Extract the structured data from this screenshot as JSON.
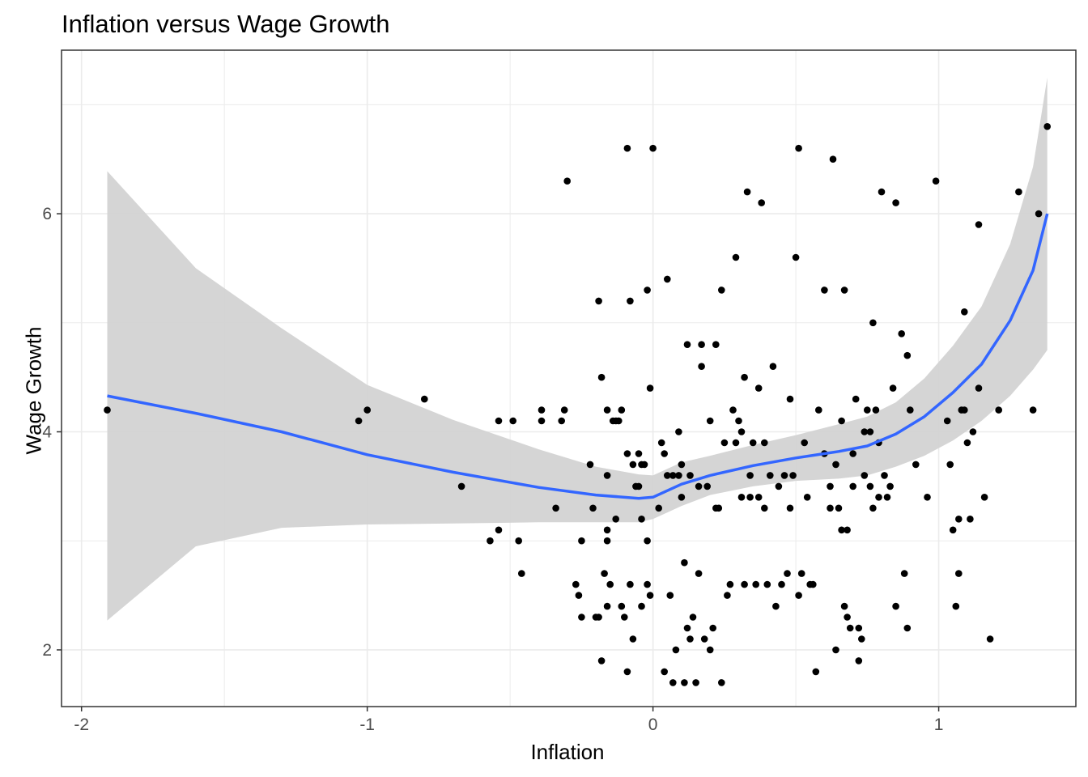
{
  "chart_data": {
    "type": "scatter",
    "title": "Inflation versus Wage Growth",
    "xlabel": "Inflation",
    "ylabel": "Wage Growth",
    "xlim": [
      -2.07,
      1.48
    ],
    "ylim": [
      1.48,
      7.5
    ],
    "x_ticks": [
      -2,
      -1,
      0,
      1
    ],
    "x_tick_labels": [
      "-2",
      "-1",
      "0",
      "1"
    ],
    "y_ticks": [
      2,
      4,
      6
    ],
    "y_tick_labels": [
      "2",
      "4",
      "6"
    ],
    "grid": true,
    "colors": {
      "points": "#000000",
      "smooth_line": "#3366FF",
      "ribbon": "#D3D3D3",
      "grid": "#EBEBEB",
      "panel_border": "#333333"
    },
    "points": [
      [
        -1.91,
        4.2
      ],
      [
        -1.03,
        4.1
      ],
      [
        -1.0,
        4.2
      ],
      [
        -0.8,
        4.3
      ],
      [
        -0.67,
        3.5
      ],
      [
        -0.57,
        3.0
      ],
      [
        -0.54,
        3.1
      ],
      [
        -0.54,
        4.1
      ],
      [
        -0.49,
        4.1
      ],
      [
        -0.47,
        3.0
      ],
      [
        -0.46,
        2.7
      ],
      [
        -0.39,
        4.1
      ],
      [
        -0.39,
        4.2
      ],
      [
        -0.34,
        3.3
      ],
      [
        -0.32,
        4.1
      ],
      [
        -0.31,
        4.2
      ],
      [
        -0.3,
        6.3
      ],
      [
        -0.27,
        2.6
      ],
      [
        -0.26,
        2.5
      ],
      [
        -0.25,
        2.3
      ],
      [
        -0.25,
        3.0
      ],
      [
        -0.22,
        3.7
      ],
      [
        -0.21,
        3.3
      ],
      [
        -0.2,
        2.3
      ],
      [
        -0.19,
        2.3
      ],
      [
        -0.19,
        5.2
      ],
      [
        -0.18,
        4.5
      ],
      [
        -0.18,
        1.9
      ],
      [
        -0.17,
        2.7
      ],
      [
        -0.16,
        3.1
      ],
      [
        -0.16,
        2.4
      ],
      [
        -0.16,
        3.6
      ],
      [
        -0.16,
        4.2
      ],
      [
        -0.16,
        3.0
      ],
      [
        -0.15,
        2.6
      ],
      [
        -0.14,
        4.1
      ],
      [
        -0.13,
        4.1
      ],
      [
        -0.13,
        3.2
      ],
      [
        -0.12,
        4.1
      ],
      [
        -0.11,
        2.4
      ],
      [
        -0.11,
        4.2
      ],
      [
        -0.1,
        2.3
      ],
      [
        -0.09,
        6.6
      ],
      [
        -0.09,
        3.8
      ],
      [
        -0.09,
        1.8
      ],
      [
        -0.08,
        2.6
      ],
      [
        -0.08,
        5.2
      ],
      [
        -0.07,
        2.1
      ],
      [
        -0.07,
        3.7
      ],
      [
        -0.06,
        3.5
      ],
      [
        -0.05,
        3.8
      ],
      [
        -0.05,
        3.5
      ],
      [
        -0.04,
        2.4
      ],
      [
        -0.04,
        3.2
      ],
      [
        -0.04,
        3.7
      ],
      [
        -0.03,
        3.7
      ],
      [
        -0.02,
        3.0
      ],
      [
        -0.02,
        2.6
      ],
      [
        -0.02,
        5.3
      ],
      [
        -0.01,
        4.4
      ],
      [
        -0.01,
        2.5
      ],
      [
        0.0,
        6.6
      ],
      [
        0.02,
        3.3
      ],
      [
        0.03,
        3.9
      ],
      [
        0.04,
        3.8
      ],
      [
        0.04,
        1.8
      ],
      [
        0.05,
        3.6
      ],
      [
        0.05,
        5.4
      ],
      [
        0.06,
        2.5
      ],
      [
        0.07,
        3.6
      ],
      [
        0.07,
        1.7
      ],
      [
        0.08,
        2.0
      ],
      [
        0.09,
        4.0
      ],
      [
        0.09,
        3.6
      ],
      [
        0.1,
        3.4
      ],
      [
        0.1,
        3.7
      ],
      [
        0.11,
        2.8
      ],
      [
        0.11,
        1.7
      ],
      [
        0.12,
        2.2
      ],
      [
        0.12,
        4.8
      ],
      [
        0.13,
        3.6
      ],
      [
        0.13,
        2.1
      ],
      [
        0.14,
        2.3
      ],
      [
        0.15,
        1.7
      ],
      [
        0.16,
        2.7
      ],
      [
        0.16,
        3.5
      ],
      [
        0.17,
        4.6
      ],
      [
        0.17,
        4.8
      ],
      [
        0.18,
        2.1
      ],
      [
        0.19,
        3.5
      ],
      [
        0.2,
        2.0
      ],
      [
        0.2,
        4.1
      ],
      [
        0.21,
        2.2
      ],
      [
        0.22,
        4.8
      ],
      [
        0.22,
        3.3
      ],
      [
        0.23,
        3.3
      ],
      [
        0.24,
        1.7
      ],
      [
        0.24,
        5.3
      ],
      [
        0.25,
        3.9
      ],
      [
        0.26,
        2.5
      ],
      [
        0.27,
        2.6
      ],
      [
        0.28,
        4.2
      ],
      [
        0.29,
        3.9
      ],
      [
        0.29,
        5.6
      ],
      [
        0.3,
        4.1
      ],
      [
        0.31,
        3.4
      ],
      [
        0.31,
        4.0
      ],
      [
        0.32,
        2.6
      ],
      [
        0.32,
        4.5
      ],
      [
        0.33,
        6.2
      ],
      [
        0.34,
        3.6
      ],
      [
        0.34,
        3.4
      ],
      [
        0.35,
        3.9
      ],
      [
        0.36,
        2.6
      ],
      [
        0.37,
        3.4
      ],
      [
        0.37,
        4.4
      ],
      [
        0.38,
        6.1
      ],
      [
        0.39,
        3.3
      ],
      [
        0.39,
        3.9
      ],
      [
        0.4,
        2.6
      ],
      [
        0.41,
        3.6
      ],
      [
        0.42,
        4.6
      ],
      [
        0.43,
        2.4
      ],
      [
        0.44,
        3.5
      ],
      [
        0.45,
        2.6
      ],
      [
        0.46,
        3.6
      ],
      [
        0.47,
        2.7
      ],
      [
        0.48,
        3.3
      ],
      [
        0.48,
        4.3
      ],
      [
        0.49,
        3.6
      ],
      [
        0.5,
        5.6
      ],
      [
        0.51,
        2.5
      ],
      [
        0.51,
        6.6
      ],
      [
        0.52,
        2.7
      ],
      [
        0.53,
        3.9
      ],
      [
        0.54,
        3.4
      ],
      [
        0.55,
        2.6
      ],
      [
        0.56,
        2.6
      ],
      [
        0.57,
        1.8
      ],
      [
        0.58,
        4.2
      ],
      [
        0.6,
        3.8
      ],
      [
        0.6,
        5.3
      ],
      [
        0.62,
        3.5
      ],
      [
        0.62,
        3.3
      ],
      [
        0.63,
        6.5
      ],
      [
        0.64,
        3.7
      ],
      [
        0.64,
        2.0
      ],
      [
        0.65,
        3.3
      ],
      [
        0.66,
        4.1
      ],
      [
        0.66,
        3.1
      ],
      [
        0.67,
        5.3
      ],
      [
        0.67,
        2.4
      ],
      [
        0.68,
        3.1
      ],
      [
        0.68,
        2.3
      ],
      [
        0.69,
        2.2
      ],
      [
        0.7,
        3.8
      ],
      [
        0.7,
        3.5
      ],
      [
        0.71,
        4.3
      ],
      [
        0.72,
        2.2
      ],
      [
        0.72,
        1.9
      ],
      [
        0.73,
        2.1
      ],
      [
        0.74,
        3.6
      ],
      [
        0.74,
        4.0
      ],
      [
        0.75,
        4.2
      ],
      [
        0.76,
        3.5
      ],
      [
        0.76,
        4.0
      ],
      [
        0.77,
        5.0
      ],
      [
        0.77,
        3.3
      ],
      [
        0.78,
        4.2
      ],
      [
        0.79,
        3.9
      ],
      [
        0.79,
        3.4
      ],
      [
        0.8,
        6.2
      ],
      [
        0.81,
        3.6
      ],
      [
        0.82,
        3.4
      ],
      [
        0.83,
        3.5
      ],
      [
        0.84,
        4.4
      ],
      [
        0.85,
        6.1
      ],
      [
        0.85,
        2.4
      ],
      [
        0.87,
        4.9
      ],
      [
        0.88,
        2.7
      ],
      [
        0.89,
        4.7
      ],
      [
        0.89,
        2.2
      ],
      [
        0.9,
        4.2
      ],
      [
        0.92,
        3.7
      ],
      [
        0.96,
        3.4
      ],
      [
        0.99,
        6.3
      ],
      [
        1.03,
        4.1
      ],
      [
        1.04,
        3.7
      ],
      [
        1.05,
        3.1
      ],
      [
        1.06,
        2.4
      ],
      [
        1.07,
        3.2
      ],
      [
        1.07,
        2.7
      ],
      [
        1.08,
        4.2
      ],
      [
        1.09,
        4.2
      ],
      [
        1.09,
        5.1
      ],
      [
        1.1,
        3.9
      ],
      [
        1.11,
        3.2
      ],
      [
        1.12,
        4.0
      ],
      [
        1.14,
        5.9
      ],
      [
        1.14,
        4.4
      ],
      [
        1.16,
        3.4
      ],
      [
        1.18,
        2.1
      ],
      [
        1.21,
        4.2
      ],
      [
        1.28,
        6.2
      ],
      [
        1.33,
        4.2
      ],
      [
        1.35,
        6.0
      ],
      [
        1.38,
        6.8
      ]
    ],
    "smooth": {
      "x": [
        -1.91,
        -1.6,
        -1.3,
        -1.0,
        -0.7,
        -0.4,
        -0.2,
        -0.05,
        0.0,
        0.1,
        0.2,
        0.35,
        0.5,
        0.65,
        0.75,
        0.85,
        0.95,
        1.05,
        1.15,
        1.25,
        1.33,
        1.38
      ],
      "y": [
        4.33,
        4.17,
        4.0,
        3.79,
        3.63,
        3.49,
        3.42,
        3.39,
        3.4,
        3.52,
        3.6,
        3.69,
        3.76,
        3.82,
        3.87,
        3.98,
        4.14,
        4.36,
        4.62,
        5.02,
        5.48,
        6.0
      ],
      "lower": [
        2.27,
        2.95,
        3.12,
        3.15,
        3.16,
        3.17,
        3.17,
        3.17,
        3.2,
        3.32,
        3.42,
        3.5,
        3.55,
        3.57,
        3.6,
        3.68,
        3.78,
        3.92,
        4.1,
        4.33,
        4.57,
        4.75
      ],
      "upper": [
        6.39,
        5.5,
        4.95,
        4.43,
        4.11,
        3.84,
        3.68,
        3.61,
        3.6,
        3.72,
        3.78,
        3.88,
        3.97,
        4.07,
        4.14,
        4.27,
        4.49,
        4.79,
        5.15,
        5.72,
        6.43,
        7.25
      ]
    }
  }
}
